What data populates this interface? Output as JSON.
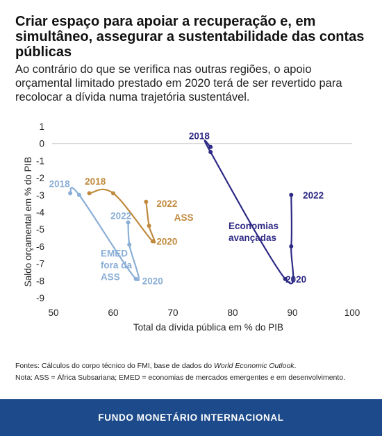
{
  "header": {
    "title": "Criar espaço para apoiar a recuperação e, em simultâneo, assegurar a sustentabilidade das contas públicas",
    "subtitle": "Ao contrário do que se verifica nas outras regiões, o apoio orçamental limitado prestado em 2020 terá de ser revertido para recolocar a dívida numa trajetória sustentável."
  },
  "chart_data": {
    "type": "line",
    "xlabel": "Total da dívida pública em % do PIB",
    "ylabel": "Saldo orçamental em % do PIB",
    "xlim": [
      50,
      100
    ],
    "ylim": [
      -9,
      1
    ],
    "xticks": [
      50,
      60,
      70,
      80,
      90,
      100
    ],
    "yticks": [
      1,
      0,
      -1,
      -2,
      -3,
      -4,
      -5,
      -6,
      -7,
      -8,
      -9
    ],
    "zero_line": true,
    "series": [
      {
        "name": "Economias avançadas",
        "label_lines": [
          "Economias",
          "avançadas"
        ],
        "color": "#2e2a85",
        "points": [
          {
            "year": "2018",
            "x": 76.3,
            "y": -0.2
          },
          {
            "year": "2019",
            "x": 76.3,
            "y": -0.5
          },
          {
            "year": "2020",
            "x": 88.8,
            "y": -7.9
          },
          {
            "year": "2021",
            "x": 89.8,
            "y": -6.0
          },
          {
            "year": "2022",
            "x": 89.8,
            "y": -3.0
          }
        ],
        "year_labels": [
          {
            "text": "2018",
            "x": 74.4,
            "y": 0.45
          },
          {
            "text": "2022",
            "x": 93.5,
            "y": -3.0
          },
          {
            "text": "2020",
            "x": 90.6,
            "y": -7.9
          }
        ]
      },
      {
        "name": "EMED fora da ASS",
        "label_lines": [
          "EMED",
          "fora da",
          "ASS"
        ],
        "color": "#8aaed6",
        "points": [
          {
            "year": "2018",
            "x": 52.8,
            "y": -2.9
          },
          {
            "year": "2019",
            "x": 54.3,
            "y": -3.0
          },
          {
            "year": "2020",
            "x": 63.8,
            "y": -7.9
          },
          {
            "year": "2021",
            "x": 62.7,
            "y": -5.9
          },
          {
            "year": "2022",
            "x": 62.5,
            "y": -4.6
          }
        ],
        "year_labels": [
          {
            "text": "2018",
            "x": 51.0,
            "y": -2.35
          },
          {
            "text": "2022",
            "x": 61.3,
            "y": -4.2
          },
          {
            "text": "2020",
            "x": 66.6,
            "y": -8.0
          }
        ]
      },
      {
        "name": "ASS",
        "label_lines": [
          "ASS"
        ],
        "color": "#c08a3e",
        "points": [
          {
            "year": "2018",
            "x": 56.0,
            "y": -2.9
          },
          {
            "year": "2019",
            "x": 60.0,
            "y": -2.9
          },
          {
            "year": "2020",
            "x": 66.6,
            "y": -5.7
          },
          {
            "year": "2021",
            "x": 66.0,
            "y": -4.8
          },
          {
            "year": "2022",
            "x": 65.5,
            "y": -3.4
          }
        ],
        "year_labels": [
          {
            "text": "2018",
            "x": 57.0,
            "y": -2.2
          },
          {
            "text": "2022",
            "x": 69.0,
            "y": -3.5
          },
          {
            "text": "2020",
            "x": 69.0,
            "y": -5.7
          }
        ]
      }
    ],
    "series_labels": [
      {
        "series": 0,
        "x": 79.3,
        "y": -5.0
      },
      {
        "series": 1,
        "x": 57.9,
        "y": -6.6
      },
      {
        "series": 2,
        "x": 70.2,
        "y": -4.5
      }
    ]
  },
  "notes": {
    "source_prefix": "Fontes: Cálculos do corpo técnico do FMI, base de dados do ",
    "source_italic": "World Economic Outlook",
    "source_suffix": ".",
    "note": "Nota: ASS = África Subsariana; EMED = economias de mercados emergentes e em desenvolvimento."
  },
  "footer": {
    "label": "FUNDO MONETÁRIO INTERNACIONAL",
    "color": "#1c4a8a"
  }
}
